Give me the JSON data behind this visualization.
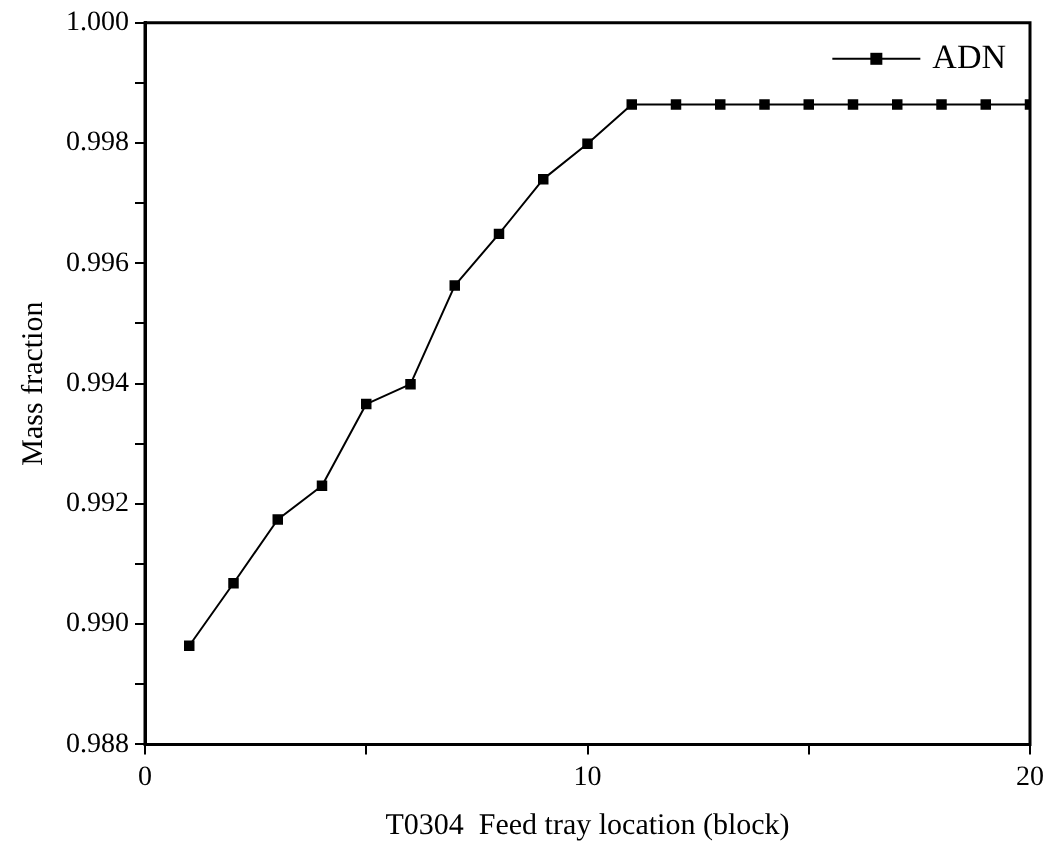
{
  "chart_data": {
    "type": "line",
    "xlabel": "T0304  Feed tray location (block)",
    "ylabel": "Mass fraction",
    "x": [
      1,
      2,
      3,
      4,
      5,
      6,
      7,
      8,
      9,
      10,
      11,
      12,
      13,
      14,
      15,
      16,
      17,
      18,
      19,
      20
    ],
    "series": [
      {
        "name": "ADN",
        "color": "#000000",
        "values": [
          0.98964,
          0.99068,
          0.99174,
          0.9923,
          0.99366,
          0.99399,
          0.99563,
          0.99649,
          0.9974,
          0.99799,
          0.99864,
          0.99864,
          0.99864,
          0.99864,
          0.99864,
          0.99864,
          0.99864,
          0.99864,
          0.99864,
          0.99864
        ]
      }
    ],
    "xlim": [
      0,
      20
    ],
    "xticks": [
      0,
      {
        "value": 5,
        "label": null
      },
      10,
      {
        "value": 15,
        "label": null
      },
      20
    ],
    "ylim": [
      0.988,
      1.0
    ],
    "yticks": [
      0.988,
      {
        "value": 0.989,
        "label": null
      },
      {
        "value": 0.99,
        "label": "0.990"
      },
      {
        "value": 0.991,
        "label": null
      },
      0.992,
      {
        "value": 0.993,
        "label": null
      },
      0.994,
      {
        "value": 0.995,
        "label": null
      },
      0.996,
      {
        "value": 0.997,
        "label": null
      },
      0.998,
      {
        "value": 0.999,
        "label": null
      },
      {
        "value": 1.0,
        "label": "1.000"
      }
    ],
    "grid": false,
    "legend": "top right",
    "marker": "square",
    "line_style": "solid"
  }
}
